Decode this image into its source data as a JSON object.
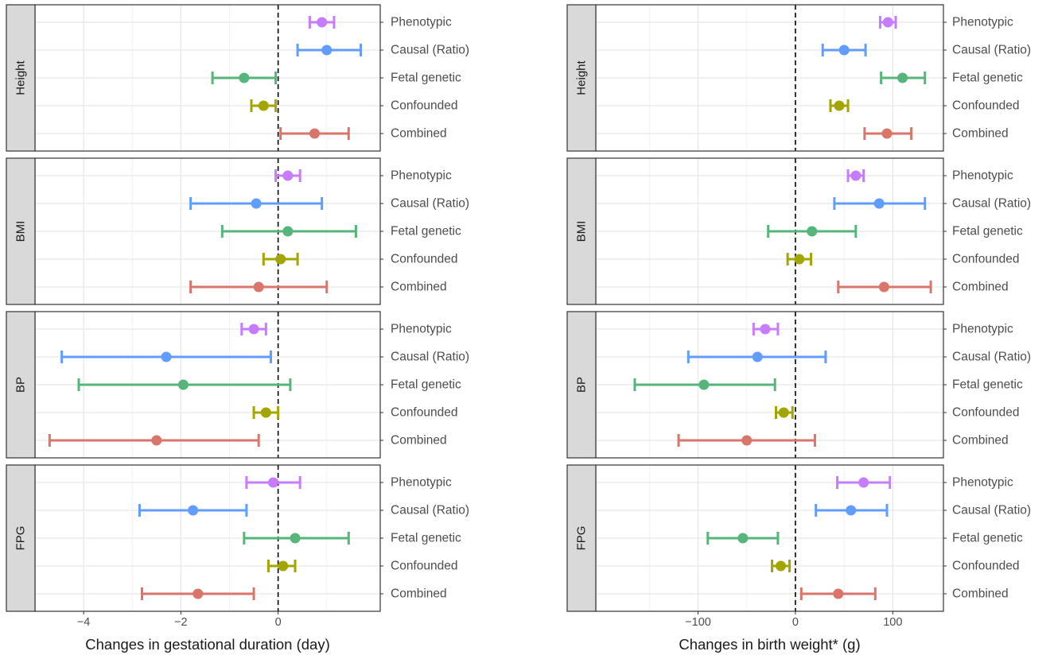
{
  "chart_data": [
    {
      "type": "forest",
      "xlabel": "Changes in gestational duration (day)",
      "xticks": [
        -4,
        -2,
        0
      ],
      "xlim": [
        -5.0,
        2.1
      ],
      "reference_line": 0,
      "categories": [
        "Phenotypic",
        "Causal (Ratio)",
        "Fetal genetic",
        "Confounded",
        "Combined"
      ],
      "panels": [
        {
          "label": "Height",
          "estimates": [
            {
              "category": "Phenotypic",
              "est": 0.9,
              "lo": 0.65,
              "hi": 1.15
            },
            {
              "category": "Causal (Ratio)",
              "est": 1.0,
              "lo": 0.4,
              "hi": 1.7
            },
            {
              "category": "Fetal genetic",
              "est": -0.7,
              "lo": -1.35,
              "hi": -0.05
            },
            {
              "category": "Confounded",
              "est": -0.3,
              "lo": -0.55,
              "hi": -0.05
            },
            {
              "category": "Combined",
              "est": 0.75,
              "lo": 0.05,
              "hi": 1.45
            }
          ]
        },
        {
          "label": "BMI",
          "estimates": [
            {
              "category": "Phenotypic",
              "est": 0.2,
              "lo": -0.05,
              "hi": 0.45
            },
            {
              "category": "Causal (Ratio)",
              "est": -0.45,
              "lo": -1.8,
              "hi": 0.9
            },
            {
              "category": "Fetal genetic",
              "est": 0.2,
              "lo": -1.15,
              "hi": 1.6
            },
            {
              "category": "Confounded",
              "est": 0.05,
              "lo": -0.3,
              "hi": 0.4
            },
            {
              "category": "Combined",
              "est": -0.4,
              "lo": -1.8,
              "hi": 1.0
            }
          ]
        },
        {
          "label": "BP",
          "estimates": [
            {
              "category": "Phenotypic",
              "est": -0.5,
              "lo": -0.75,
              "hi": -0.25
            },
            {
              "category": "Causal (Ratio)",
              "est": -2.3,
              "lo": -4.45,
              "hi": -0.15
            },
            {
              "category": "Fetal genetic",
              "est": -1.95,
              "lo": -4.1,
              "hi": 0.25
            },
            {
              "category": "Confounded",
              "est": -0.25,
              "lo": -0.5,
              "hi": 0.0
            },
            {
              "category": "Combined",
              "est": -2.5,
              "lo": -4.7,
              "hi": -0.4
            }
          ]
        },
        {
          "label": "FPG",
          "estimates": [
            {
              "category": "Phenotypic",
              "est": -0.1,
              "lo": -0.65,
              "hi": 0.45
            },
            {
              "category": "Causal (Ratio)",
              "est": -1.75,
              "lo": -2.85,
              "hi": -0.65
            },
            {
              "category": "Fetal genetic",
              "est": 0.35,
              "lo": -0.7,
              "hi": 1.45
            },
            {
              "category": "Confounded",
              "est": 0.1,
              "lo": -0.2,
              "hi": 0.35
            },
            {
              "category": "Combined",
              "est": -1.65,
              "lo": -2.8,
              "hi": -0.5
            }
          ]
        }
      ]
    },
    {
      "type": "forest",
      "xlabel": "Changes in birth weight* (g)",
      "xticks": [
        -100,
        0,
        100
      ],
      "xlim": [
        -205,
        152
      ],
      "reference_line": 0,
      "categories": [
        "Phenotypic",
        "Causal (Ratio)",
        "Fetal genetic",
        "Confounded",
        "Combined"
      ],
      "panels": [
        {
          "label": "Height",
          "estimates": [
            {
              "category": "Phenotypic",
              "est": 95,
              "lo": 87,
              "hi": 103
            },
            {
              "category": "Causal (Ratio)",
              "est": 50,
              "lo": 28,
              "hi": 72
            },
            {
              "category": "Fetal genetic",
              "est": 110,
              "lo": 88,
              "hi": 133
            },
            {
              "category": "Confounded",
              "est": 45,
              "lo": 36,
              "hi": 54
            },
            {
              "category": "Combined",
              "est": 94,
              "lo": 71,
              "hi": 119
            }
          ]
        },
        {
          "label": "BMI",
          "estimates": [
            {
              "category": "Phenotypic",
              "est": 62,
              "lo": 54,
              "hi": 70
            },
            {
              "category": "Causal (Ratio)",
              "est": 86,
              "lo": 40,
              "hi": 133
            },
            {
              "category": "Fetal genetic",
              "est": 17,
              "lo": -28,
              "hi": 62
            },
            {
              "category": "Confounded",
              "est": 4,
              "lo": -8,
              "hi": 16
            },
            {
              "category": "Combined",
              "est": 91,
              "lo": 44,
              "hi": 139
            }
          ]
        },
        {
          "label": "BP",
          "estimates": [
            {
              "category": "Phenotypic",
              "est": -31,
              "lo": -43,
              "hi": -18
            },
            {
              "category": "Causal (Ratio)",
              "est": -39,
              "lo": -110,
              "hi": 31
            },
            {
              "category": "Fetal genetic",
              "est": -94,
              "lo": -165,
              "hi": -21
            },
            {
              "category": "Confounded",
              "est": -12,
              "lo": -20,
              "hi": -3
            },
            {
              "category": "Combined",
              "est": -50,
              "lo": -120,
              "hi": 20
            }
          ]
        },
        {
          "label": "FPG",
          "estimates": [
            {
              "category": "Phenotypic",
              "est": 70,
              "lo": 43,
              "hi": 97
            },
            {
              "category": "Causal (Ratio)",
              "est": 57,
              "lo": 21,
              "hi": 94
            },
            {
              "category": "Fetal genetic",
              "est": -54,
              "lo": -90,
              "hi": -18
            },
            {
              "category": "Confounded",
              "est": -15,
              "lo": -24,
              "hi": -6
            },
            {
              "category": "Combined",
              "est": 44,
              "lo": 6,
              "hi": 82
            }
          ]
        }
      ]
    }
  ],
  "colors": {
    "Phenotypic": "#c77cff",
    "Causal (Ratio)": "#619cff",
    "Fetal genetic": "#56b57a",
    "Confounded": "#a3a500",
    "Combined": "#d9756a",
    "strip": "#d9d9d9",
    "grid_major": "#e6e6e6",
    "grid_minor": "#f2f2f2",
    "panel_border": "#333333",
    "text": "#4d4d4d"
  }
}
